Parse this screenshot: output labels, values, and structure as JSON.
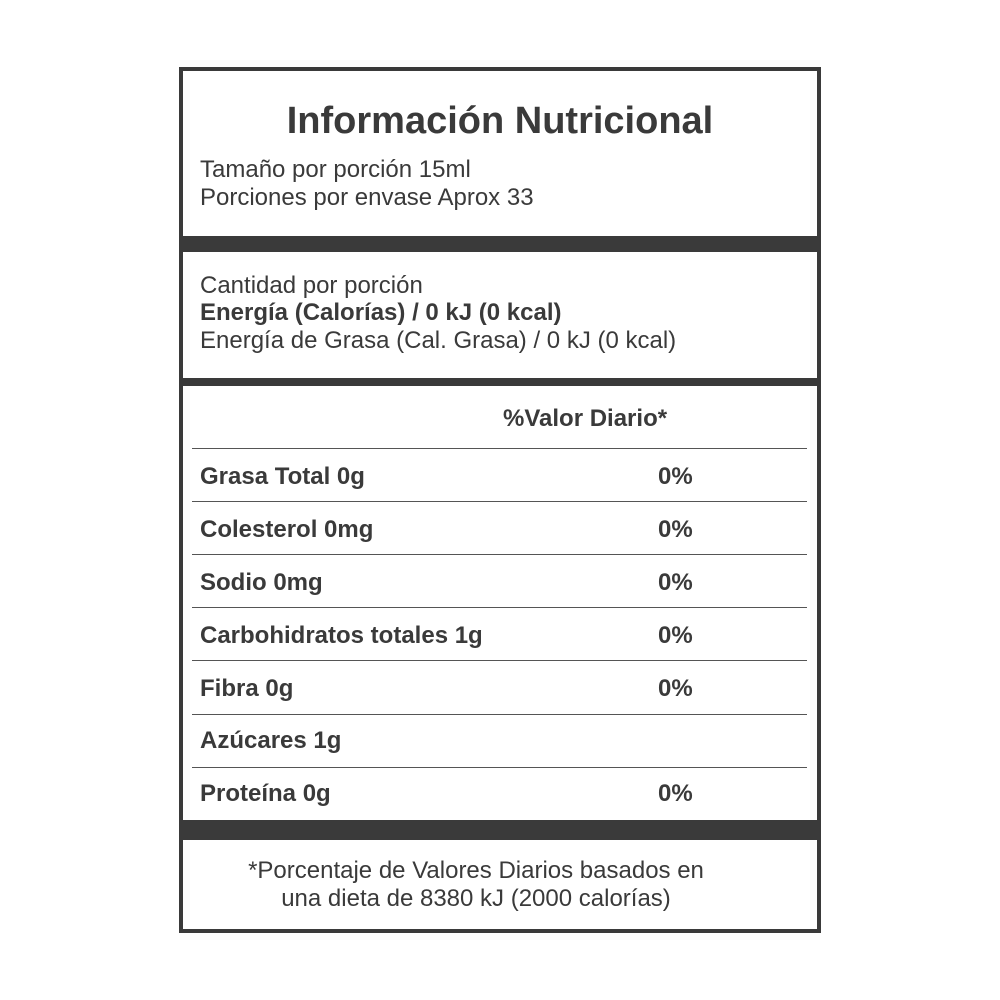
{
  "title": "Información Nutricional",
  "serving_size": "Tamaño por porción 15ml",
  "servings_per_container": "Porciones por envase Aprox 33",
  "amount_per_serving": "Cantidad por porción",
  "energy": "Energía (Calorías) / 0 kJ (0 kcal)",
  "fat_energy": "Energía de Grasa (Cal. Grasa) / 0 kJ (0 kcal)",
  "daily_value_header": "%Valor Diario*",
  "rows": [
    {
      "label": "Grasa Total  0g",
      "dv": "0%"
    },
    {
      "label": "Colesterol 0mg",
      "dv": "0%"
    },
    {
      "label": "Sodio 0mg",
      "dv": "0%"
    },
    {
      "label": "Carbohidratos totales 1g",
      "dv": "0%"
    },
    {
      "label": "Fibra 0g",
      "dv": "0%"
    },
    {
      "label": "Azúcares 1g",
      "dv": ""
    },
    {
      "label": "Proteína 0g",
      "dv": "0%"
    }
  ],
  "footnote_line1": "*Porcentaje de Valores Diarios basados en",
  "footnote_line2": "una dieta de 8380 kJ (2000 calorías)"
}
